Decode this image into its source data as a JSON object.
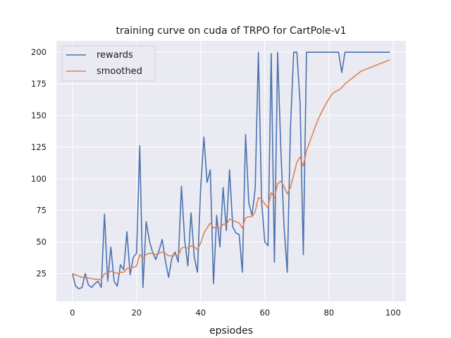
{
  "chart_data": {
    "type": "line",
    "title": "training curve on cuda of TRPO for CartPole-v1",
    "xlabel": "epsiodes",
    "ylabel": "",
    "xlim": [
      -5,
      104
    ],
    "ylim": [
      3,
      209
    ],
    "xticks": [
      0,
      20,
      40,
      60,
      80,
      100
    ],
    "yticks": [
      25,
      50,
      75,
      100,
      125,
      150,
      175,
      200
    ],
    "grid": true,
    "legend_position": "top-left",
    "background_color": "#eaeaf2",
    "series": [
      {
        "name": "rewards",
        "color": "#4c72b0",
        "x": [
          0,
          1,
          2,
          3,
          4,
          5,
          6,
          7,
          8,
          9,
          10,
          11,
          12,
          13,
          14,
          15,
          16,
          17,
          18,
          19,
          20,
          21,
          22,
          23,
          24,
          25,
          26,
          27,
          28,
          29,
          30,
          31,
          32,
          33,
          34,
          35,
          36,
          37,
          38,
          39,
          40,
          41,
          42,
          43,
          44,
          45,
          46,
          47,
          48,
          49,
          50,
          51,
          52,
          53,
          54,
          55,
          56,
          57,
          58,
          59,
          60,
          61,
          62,
          63,
          64,
          65,
          66,
          67,
          68,
          69,
          70,
          71,
          72,
          73,
          74,
          75,
          76,
          77,
          78,
          79,
          80,
          81,
          82,
          83,
          84,
          85,
          86,
          87,
          88,
          89,
          90,
          91,
          92,
          93,
          94,
          95,
          96,
          97,
          98,
          99
        ],
        "values": [
          25,
          15,
          13,
          14,
          25,
          16,
          14,
          17,
          19,
          14,
          72,
          19,
          46,
          19,
          15,
          32,
          28,
          58,
          24,
          38,
          41,
          126,
          14,
          66,
          51,
          42,
          36,
          43,
          52,
          35,
          22,
          37,
          42,
          34,
          94,
          52,
          31,
          73,
          38,
          26,
          93,
          133,
          97,
          107,
          17,
          71,
          46,
          93,
          59,
          107,
          62,
          57,
          56,
          26,
          135,
          81,
          71,
          92,
          200,
          82,
          50,
          47,
          199,
          34,
          200,
          123,
          62,
          26,
          140,
          200,
          200,
          160,
          40,
          200,
          200,
          200,
          200,
          200,
          200,
          200,
          200,
          200,
          200,
          200,
          184,
          200,
          200,
          200,
          200,
          200,
          200,
          200,
          200,
          200,
          200,
          200,
          200,
          200,
          200,
          200
        ]
      },
      {
        "name": "smoothed",
        "color": "#dd8452",
        "x": [
          0,
          1,
          2,
          3,
          4,
          5,
          6,
          7,
          8,
          9,
          10,
          11,
          12,
          13,
          14,
          15,
          16,
          17,
          18,
          19,
          20,
          21,
          22,
          23,
          24,
          25,
          26,
          27,
          28,
          29,
          30,
          31,
          32,
          33,
          34,
          35,
          36,
          37,
          38,
          39,
          40,
          41,
          42,
          43,
          44,
          45,
          46,
          47,
          48,
          49,
          50,
          51,
          52,
          53,
          54,
          55,
          56,
          57,
          58,
          59,
          60,
          61,
          62,
          63,
          64,
          65,
          66,
          67,
          68,
          69,
          70,
          71,
          72,
          73,
          74,
          75,
          76,
          77,
          78,
          79,
          80,
          81,
          82,
          83,
          84,
          85,
          86,
          87,
          88,
          89,
          90,
          91,
          92,
          93,
          94,
          95,
          96,
          97,
          98,
          99
        ],
        "values": [
          25,
          24,
          23,
          22,
          22,
          21.5,
          21,
          20.5,
          20.5,
          20,
          25,
          25,
          27,
          26,
          25,
          26,
          26,
          29,
          29,
          30,
          31,
          40,
          37,
          40,
          41,
          41,
          40,
          41,
          42,
          41,
          39,
          39,
          40,
          39,
          45,
          46,
          45,
          47,
          46,
          44,
          49,
          57,
          61,
          65,
          61,
          62,
          61,
          64,
          64,
          68,
          67,
          66,
          65,
          61,
          69,
          70,
          70,
          74,
          85,
          84,
          80,
          77,
          89,
          85,
          96,
          98,
          94,
          88,
          93,
          103,
          113,
          117,
          110,
          122,
          129,
          136,
          143,
          149,
          154,
          159,
          163,
          167,
          169,
          170,
          172,
          175,
          177,
          179,
          181,
          183,
          185,
          186,
          187,
          188,
          189,
          190,
          191,
          192,
          193,
          194
        ]
      }
    ]
  }
}
